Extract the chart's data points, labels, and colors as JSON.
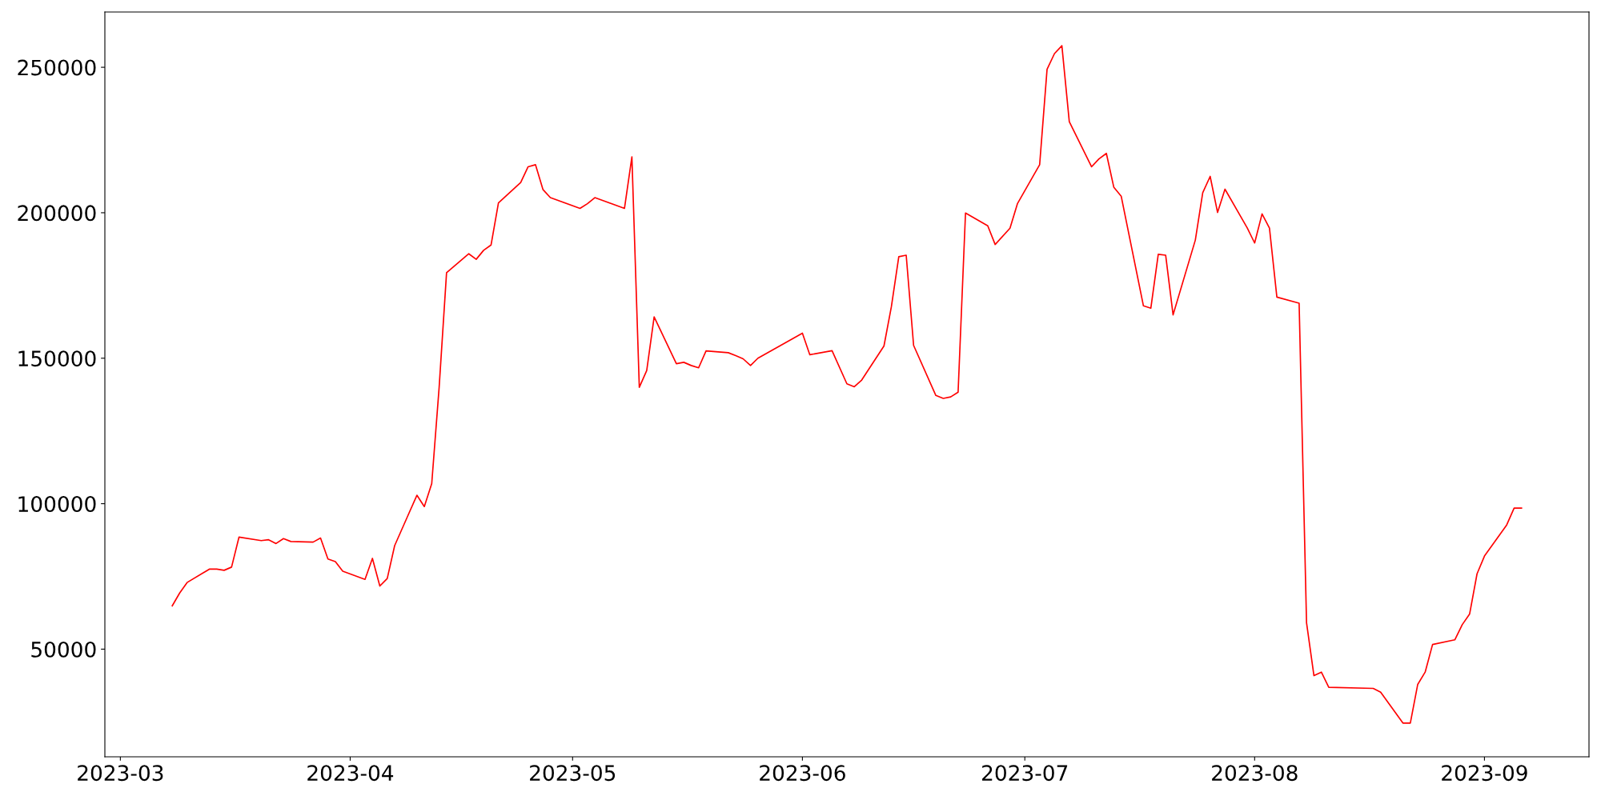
{
  "chart_data": {
    "type": "line",
    "x": [
      "2023-03-08",
      "2023-03-09",
      "2023-03-10",
      "2023-03-13",
      "2023-03-14",
      "2023-03-15",
      "2023-03-16",
      "2023-03-17",
      "2023-03-20",
      "2023-03-21",
      "2023-03-22",
      "2023-03-23",
      "2023-03-24",
      "2023-03-27",
      "2023-03-28",
      "2023-03-29",
      "2023-03-30",
      "2023-03-31",
      "2023-04-03",
      "2023-04-04",
      "2023-04-05",
      "2023-04-06",
      "2023-04-07",
      "2023-04-10",
      "2023-04-11",
      "2023-04-12",
      "2023-04-13",
      "2023-04-14",
      "2023-04-17",
      "2023-04-18",
      "2023-04-19",
      "2023-04-20",
      "2023-04-21",
      "2023-04-24",
      "2023-04-25",
      "2023-04-26",
      "2023-04-27",
      "2023-04-28",
      "2023-05-02",
      "2023-05-03",
      "2023-05-04",
      "2023-05-08",
      "2023-05-09",
      "2023-05-10",
      "2023-05-11",
      "2023-05-12",
      "2023-05-15",
      "2023-05-16",
      "2023-05-17",
      "2023-05-18",
      "2023-05-19",
      "2023-05-22",
      "2023-05-23",
      "2023-05-24",
      "2023-05-25",
      "2023-05-26",
      "2023-06-01",
      "2023-06-02",
      "2023-06-05",
      "2023-06-07",
      "2023-06-08",
      "2023-06-09",
      "2023-06-12",
      "2023-06-13",
      "2023-06-14",
      "2023-06-15",
      "2023-06-16",
      "2023-06-19",
      "2023-06-20",
      "2023-06-21",
      "2023-06-22",
      "2023-06-23",
      "2023-06-26",
      "2023-06-27",
      "2023-06-29",
      "2023-06-30",
      "2023-07-03",
      "2023-07-04",
      "2023-07-05",
      "2023-07-06",
      "2023-07-07",
      "2023-07-10",
      "2023-07-11",
      "2023-07-12",
      "2023-07-13",
      "2023-07-14",
      "2023-07-17",
      "2023-07-18",
      "2023-07-19",
      "2023-07-20",
      "2023-07-21",
      "2023-07-24",
      "2023-07-25",
      "2023-07-26",
      "2023-07-27",
      "2023-07-28",
      "2023-07-31",
      "2023-08-01",
      "2023-08-02",
      "2023-08-03",
      "2023-08-04",
      "2023-08-07",
      "2023-08-08",
      "2023-08-09",
      "2023-08-10",
      "2023-08-11",
      "2023-08-17",
      "2023-08-18",
      "2023-08-21",
      "2023-08-22",
      "2023-08-23",
      "2023-08-24",
      "2023-08-25",
      "2023-08-28",
      "2023-08-29",
      "2023-08-30",
      "2023-08-31",
      "2023-09-01",
      "2023-09-04",
      "2023-09-05",
      "2023-09-06"
    ],
    "series": [
      {
        "color": "#ff0000",
        "values": [
          64900,
          69300,
          72900,
          77500,
          77500,
          77100,
          78200,
          88500,
          87300,
          87600,
          86300,
          88000,
          87000,
          86800,
          88200,
          81000,
          80100,
          76800,
          74000,
          81200,
          71700,
          74300,
          85600,
          102900,
          99000,
          106900,
          140000,
          179400,
          185900,
          184000,
          187100,
          188900,
          203400,
          210400,
          215800,
          216500,
          208000,
          205200,
          201500,
          203100,
          205200,
          201500,
          219200,
          140000,
          145800,
          164200,
          148100,
          148600,
          147500,
          146700,
          152500,
          151900,
          150900,
          149800,
          147500,
          150000,
          158600,
          151200,
          152600,
          141200,
          140200,
          142500,
          154200,
          167700,
          184900,
          185400,
          154400,
          137200,
          136200,
          136700,
          138300,
          199900,
          195500,
          189100,
          194700,
          203100,
          216500,
          249300,
          254700,
          257400,
          231300,
          215800,
          218500,
          220400,
          208800,
          205700,
          168000,
          167200,
          185700,
          185400,
          164900,
          190600,
          206900,
          212500,
          200100,
          208100,
          194800,
          189600,
          199600,
          194700,
          171000,
          168900,
          59100,
          40900,
          42100,
          36900,
          36500,
          35200,
          24600,
          24600,
          37900,
          42100,
          51600,
          53200,
          58400,
          62100,
          75900,
          82000,
          92700,
          98500,
          98500
        ]
      }
    ],
    "xlim": [
      "2023-02-26T21:50",
      "2023-09-15T02:24"
    ],
    "ylim": [
      13000,
      269000
    ],
    "xticks": [
      {
        "value": "2023-03",
        "label": "2023-03"
      },
      {
        "value": "2023-04",
        "label": "2023-04"
      },
      {
        "value": "2023-05",
        "label": "2023-05"
      },
      {
        "value": "2023-06",
        "label": "2023-06"
      },
      {
        "value": "2023-07",
        "label": "2023-07"
      },
      {
        "value": "2023-08",
        "label": "2023-08"
      },
      {
        "value": "2023-09",
        "label": "2023-09"
      }
    ],
    "yticks": [
      50000,
      100000,
      150000,
      200000,
      250000
    ],
    "grid": false,
    "legend": false,
    "marker": "none",
    "line_style": "solid"
  }
}
